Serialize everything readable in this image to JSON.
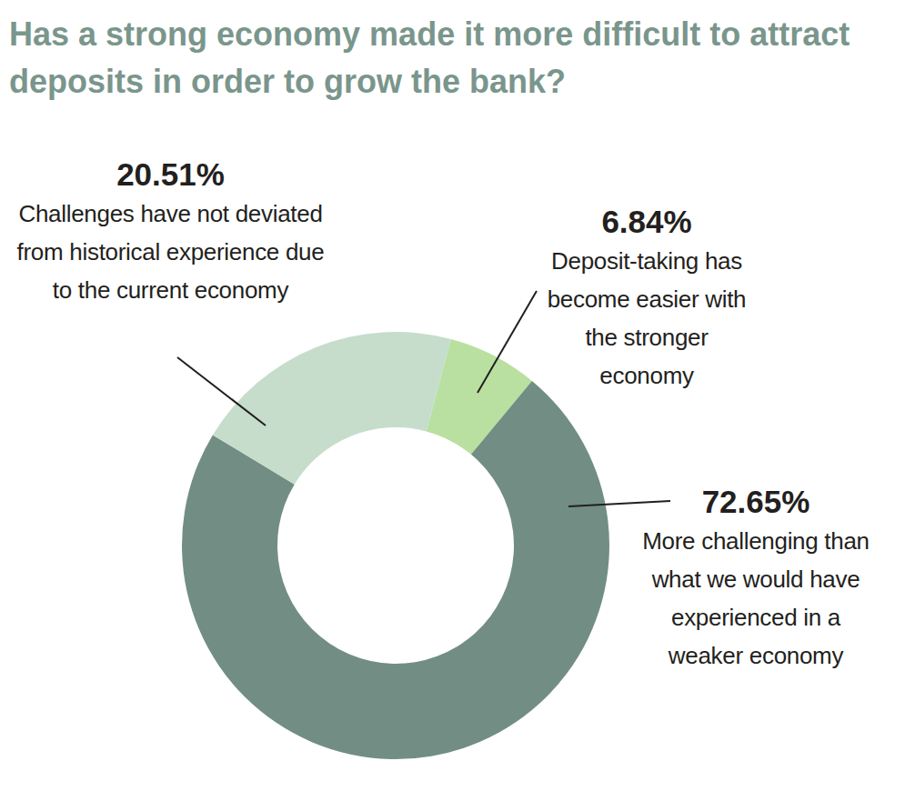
{
  "chart_data": {
    "type": "pie",
    "title": "Has a strong economy made it more difficult to attract deposits in order to grow the bank?",
    "categories": [
      "Deposit-taking has become easier with the stronger economy",
      "More challenging than what we would have experienced in a weaker economy",
      "Challenges have not deviated from historical experience due to the current economy"
    ],
    "values": [
      6.84,
      72.65,
      20.51
    ],
    "value_labels": [
      "6.84%",
      "72.65%",
      "20.51%"
    ],
    "colors": [
      "#b9e0a0",
      "#728e84",
      "#c6ddcc"
    ],
    "data_labels": true
  }
}
